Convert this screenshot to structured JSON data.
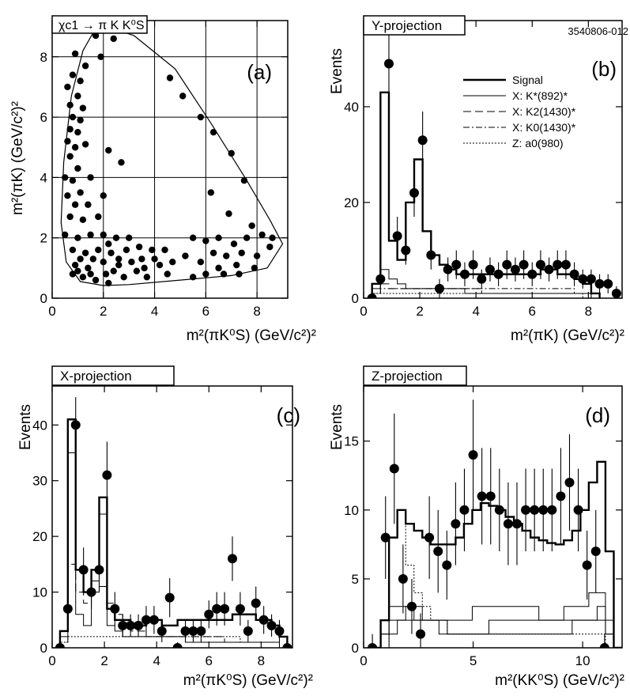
{
  "figure_id": "3540806-012",
  "chart_data": [
    {
      "panel": "a",
      "type": "scatter",
      "title": "χc1 → π K K⁰S",
      "tag": "(a)",
      "xlabel": "m²(πK⁰S)  (GeV/c²)²",
      "ylabel": "m²(πK)  (GeV/c²)²",
      "xlim": [
        0,
        9.2
      ],
      "ylim": [
        0,
        9.2
      ],
      "xticks": [
        0,
        2,
        4,
        6,
        8
      ],
      "yticks": [
        0,
        2,
        4,
        6,
        8
      ],
      "grid": true,
      "boundary": [
        [
          1.8,
          9.1
        ],
        [
          3.2,
          8.7
        ],
        [
          4.8,
          7.6
        ],
        [
          6.2,
          5.8
        ],
        [
          7.6,
          3.9
        ],
        [
          8.5,
          2.6
        ],
        [
          9.0,
          1.8
        ],
        [
          8.4,
          1.0
        ],
        [
          7.0,
          0.75
        ],
        [
          5.0,
          0.6
        ],
        [
          3.0,
          0.45
        ],
        [
          2.0,
          0.42
        ],
        [
          1.1,
          0.55
        ],
        [
          0.55,
          1.2
        ],
        [
          0.35,
          2.5
        ],
        [
          0.45,
          4.5
        ],
        [
          0.75,
          6.7
        ],
        [
          1.2,
          8.2
        ],
        [
          1.8,
          9.1
        ]
      ],
      "points": [
        [
          0.9,
          8.1
        ],
        [
          1.7,
          8.7
        ],
        [
          2.4,
          8.6
        ],
        [
          1.9,
          8.0
        ],
        [
          1.3,
          7.7
        ],
        [
          0.8,
          7.4
        ],
        [
          1.1,
          7.2
        ],
        [
          0.6,
          7.0
        ],
        [
          1.0,
          6.7
        ],
        [
          0.7,
          6.4
        ],
        [
          1.2,
          6.3
        ],
        [
          0.8,
          6.0
        ],
        [
          1.1,
          5.9
        ],
        [
          0.7,
          5.6
        ],
        [
          1.0,
          5.5
        ],
        [
          0.6,
          5.2
        ],
        [
          0.9,
          5.0
        ],
        [
          1.3,
          5.1
        ],
        [
          0.7,
          4.7
        ],
        [
          2.2,
          4.9
        ],
        [
          2.7,
          4.5
        ],
        [
          1.0,
          4.3
        ],
        [
          0.5,
          4.0
        ],
        [
          0.8,
          3.9
        ],
        [
          1.5,
          4.0
        ],
        [
          1.1,
          3.5
        ],
        [
          0.6,
          3.4
        ],
        [
          0.9,
          3.1
        ],
        [
          1.4,
          3.1
        ],
        [
          2.0,
          3.4
        ],
        [
          0.7,
          2.7
        ],
        [
          1.2,
          2.6
        ],
        [
          1.8,
          2.7
        ],
        [
          0.5,
          2.1
        ],
        [
          1.0,
          2.0
        ],
        [
          1.5,
          2.1
        ],
        [
          2.0,
          2.1
        ],
        [
          2.5,
          2.0
        ],
        [
          3.0,
          2.0
        ],
        [
          0.8,
          1.6
        ],
        [
          1.3,
          1.5
        ],
        [
          1.8,
          1.6
        ],
        [
          2.3,
          1.5
        ],
        [
          2.9,
          1.6
        ],
        [
          3.4,
          1.7
        ],
        [
          3.9,
          1.6
        ],
        [
          4.4,
          1.6
        ],
        [
          0.9,
          1.1
        ],
        [
          1.4,
          1.0
        ],
        [
          2.0,
          1.2
        ],
        [
          2.6,
          1.1
        ],
        [
          3.1,
          1.2
        ],
        [
          3.6,
          1.0
        ],
        [
          4.2,
          1.1
        ],
        [
          4.7,
          1.2
        ],
        [
          0.8,
          0.8
        ],
        [
          1.2,
          0.7
        ],
        [
          1.7,
          0.6
        ],
        [
          2.2,
          0.5
        ],
        [
          2.8,
          0.7
        ],
        [
          3.3,
          0.9
        ],
        [
          1.0,
          0.9
        ],
        [
          1.5,
          0.8
        ],
        [
          2.4,
          0.9
        ],
        [
          3.7,
          0.7
        ],
        [
          4.5,
          0.8
        ],
        [
          4.6,
          7.3
        ],
        [
          5.1,
          6.7
        ],
        [
          5.8,
          6.0
        ],
        [
          6.3,
          5.5
        ],
        [
          7.0,
          4.8
        ],
        [
          7.5,
          3.9
        ],
        [
          6.2,
          3.5
        ],
        [
          6.9,
          2.8
        ],
        [
          7.8,
          2.4
        ],
        [
          8.2,
          2.1
        ],
        [
          8.6,
          2.0
        ],
        [
          6.0,
          1.9
        ],
        [
          6.5,
          2.0
        ],
        [
          7.1,
          1.8
        ],
        [
          7.6,
          2.0
        ],
        [
          6.3,
          1.5
        ],
        [
          6.8,
          1.4
        ],
        [
          7.4,
          1.5
        ],
        [
          8.0,
          1.4
        ],
        [
          5.5,
          2.0
        ],
        [
          5.2,
          1.4
        ],
        [
          5.8,
          1.2
        ],
        [
          6.5,
          1.0
        ],
        [
          7.2,
          1.1
        ],
        [
          7.9,
          1.0
        ],
        [
          6.0,
          0.8
        ],
        [
          6.7,
          0.8
        ],
        [
          7.3,
          0.8
        ],
        [
          5.5,
          0.7
        ],
        [
          8.5,
          1.7
        ],
        [
          2.2,
          1.8
        ],
        [
          2.6,
          1.3
        ],
        [
          3.5,
          1.3
        ],
        [
          4.0,
          1.3
        ],
        [
          1.6,
          1.3
        ],
        [
          1.1,
          1.3
        ],
        [
          2.1,
          0.8
        ]
      ]
    },
    {
      "panel": "b",
      "type": "bar",
      "title": "Y-projection",
      "tag": "(b)",
      "xlabel": "m²(πK)  (GeV/c²)²",
      "ylabel": "Events",
      "xlim": [
        0,
        9.2
      ],
      "ylim": [
        0,
        58
      ],
      "xticks": [
        0,
        2,
        4,
        6,
        8
      ],
      "yticks": [
        0,
        20,
        40
      ],
      "legend": [
        {
          "label": "Signal",
          "style": "thick"
        },
        {
          "label": "X: K*(892)*",
          "style": "thin"
        },
        {
          "label": "X: K2(1430)*",
          "style": "dashed"
        },
        {
          "label": "X: K0(1430)*",
          "style": "dashdot"
        },
        {
          "label": "Z: a0(980)",
          "style": "dotted"
        }
      ],
      "bin_width": 0.3,
      "bin_start": 0.3,
      "signal": [
        3,
        43,
        12,
        8,
        20,
        29,
        14,
        9,
        7,
        6,
        5,
        5,
        5,
        5,
        5,
        5,
        5,
        5,
        5,
        5,
        6,
        6,
        5,
        5,
        4,
        3,
        1
      ],
      "components": [
        [
          2,
          6,
          4,
          3,
          2,
          2,
          2,
          2,
          2,
          2,
          2,
          1,
          1,
          1,
          1,
          1,
          1,
          1,
          1,
          1,
          1,
          1,
          1,
          1,
          1,
          1,
          0
        ],
        [
          1,
          3,
          2,
          2,
          2,
          2,
          2,
          2,
          2,
          2,
          2,
          2,
          2,
          1,
          1,
          1,
          1,
          1,
          1,
          1,
          1,
          1,
          1,
          1,
          1,
          1,
          0
        ],
        [
          1,
          2,
          2,
          2,
          2,
          2,
          2,
          2,
          2,
          2,
          2,
          2,
          2,
          2,
          2,
          2,
          2,
          2,
          2,
          2,
          2,
          2,
          2,
          2,
          1,
          1,
          0
        ],
        [
          1,
          1,
          1,
          1,
          1,
          1,
          1,
          1,
          1,
          1,
          1,
          1,
          1,
          1,
          1,
          1,
          1,
          1,
          1,
          1,
          1,
          1,
          1,
          1,
          1,
          0,
          0
        ]
      ],
      "points": [
        [
          0.3,
          0,
          1
        ],
        [
          0.6,
          4,
          2
        ],
        [
          0.9,
          49,
          9
        ],
        [
          1.2,
          13,
          4
        ],
        [
          1.5,
          10,
          3
        ],
        [
          1.8,
          22,
          5
        ],
        [
          2.1,
          33,
          6
        ],
        [
          2.4,
          9,
          3
        ],
        [
          2.7,
          2,
          2
        ],
        [
          3.0,
          6,
          2.5
        ],
        [
          3.3,
          7,
          3
        ],
        [
          3.6,
          5,
          2.5
        ],
        [
          3.9,
          7,
          3
        ],
        [
          4.2,
          4,
          2
        ],
        [
          4.5,
          6,
          2.5
        ],
        [
          4.8,
          5,
          2.5
        ],
        [
          5.1,
          7,
          3
        ],
        [
          5.4,
          6,
          2.5
        ],
        [
          5.7,
          7,
          3
        ],
        [
          6.0,
          5,
          2.5
        ],
        [
          6.3,
          7,
          3
        ],
        [
          6.6,
          6,
          2.5
        ],
        [
          6.9,
          7,
          3
        ],
        [
          7.2,
          7,
          3
        ],
        [
          7.5,
          5,
          2.5
        ],
        [
          7.8,
          4,
          2
        ],
        [
          8.1,
          4,
          2
        ],
        [
          8.4,
          3,
          2
        ],
        [
          8.7,
          3,
          2
        ],
        [
          9.0,
          1,
          1.5
        ]
      ]
    },
    {
      "panel": "c",
      "type": "bar",
      "title": "X-projection",
      "tag": "(c)",
      "xlabel": "m²(πK⁰S)  (GeV/c²)²",
      "ylabel": "Events",
      "xlim": [
        0,
        9.2
      ],
      "ylim": [
        0,
        47
      ],
      "xticks": [
        0,
        2,
        4,
        6,
        8
      ],
      "yticks": [
        0,
        10,
        20,
        30,
        40
      ],
      "bin_width": 0.3,
      "bin_start": 0.3,
      "signal": [
        3,
        41,
        14,
        10,
        14,
        27,
        7,
        5,
        5,
        4,
        4,
        5,
        5,
        4,
        4,
        5,
        5,
        5,
        5,
        5,
        5,
        5,
        6,
        6,
        6,
        5,
        5,
        4,
        2
      ],
      "components": [
        [
          2,
          35,
          6,
          4,
          12,
          24,
          4,
          3,
          2,
          2,
          2,
          2,
          2,
          2,
          2,
          2,
          1,
          1,
          1,
          1,
          1,
          1,
          1,
          1,
          1,
          1,
          1,
          1,
          0
        ],
        [
          1,
          15,
          10,
          8,
          10,
          11,
          8,
          6,
          4,
          3,
          3,
          2,
          2,
          2,
          2,
          2,
          2,
          2,
          2,
          2,
          2,
          1,
          1,
          1,
          1,
          1,
          1,
          1,
          0
        ],
        [
          1,
          2,
          2,
          2,
          2,
          2,
          2,
          2,
          2,
          2,
          2,
          2,
          2,
          2,
          2,
          2,
          2,
          2,
          2,
          2,
          2,
          2,
          2,
          1,
          1,
          1,
          1,
          1,
          0
        ]
      ],
      "points": [
        [
          0.3,
          0,
          1
        ],
        [
          0.6,
          7,
          3
        ],
        [
          0.9,
          40,
          5
        ],
        [
          1.2,
          14,
          4
        ],
        [
          1.5,
          10,
          3
        ],
        [
          1.8,
          14,
          4
        ],
        [
          2.1,
          31,
          6
        ],
        [
          2.4,
          7,
          3
        ],
        [
          2.7,
          4,
          2
        ],
        [
          3.0,
          4,
          2
        ],
        [
          3.3,
          4,
          2
        ],
        [
          3.6,
          5,
          2.5
        ],
        [
          3.9,
          5,
          2.5
        ],
        [
          4.2,
          3,
          2
        ],
        [
          4.5,
          9,
          3.5
        ],
        [
          4.8,
          0,
          1
        ],
        [
          5.1,
          3,
          2
        ],
        [
          5.4,
          3,
          2
        ],
        [
          5.7,
          3,
          2
        ],
        [
          6.0,
          6,
          2.5
        ],
        [
          6.3,
          7,
          3
        ],
        [
          6.6,
          7,
          3
        ],
        [
          6.9,
          16,
          4
        ],
        [
          7.2,
          7,
          3
        ],
        [
          7.5,
          3,
          2
        ],
        [
          7.8,
          8,
          3
        ],
        [
          8.1,
          5,
          2.5
        ],
        [
          8.4,
          4,
          2
        ],
        [
          8.7,
          3,
          2
        ],
        [
          9.0,
          0,
          1
        ]
      ]
    },
    {
      "panel": "d",
      "type": "bar",
      "title": "Z-projection",
      "tag": "(d)",
      "xlabel": "m²(KK⁰S)  (GeV/c²)²",
      "ylabel": "Events",
      "xlim": [
        0,
        11.8
      ],
      "ylim": [
        0,
        19
      ],
      "xticks": [
        0,
        5,
        10
      ],
      "yticks": [
        0,
        5,
        10,
        15
      ],
      "bin_width": 0.38,
      "bin_start": 0.4,
      "signal": [
        0,
        2,
        8,
        10,
        9,
        8.5,
        8,
        7.5,
        7.5,
        7.5,
        8,
        9,
        10,
        10.5,
        10.3,
        10,
        9.5,
        9,
        8.5,
        8,
        7.8,
        7.6,
        7.5,
        7.8,
        8.5,
        10,
        12,
        13.5,
        7,
        0
      ],
      "components": [
        [
          0,
          1,
          3,
          3,
          3,
          2,
          2,
          2,
          1,
          1,
          1,
          1,
          1,
          1,
          1,
          1,
          1,
          1,
          1,
          1,
          1,
          1,
          1,
          1,
          2,
          2,
          2,
          3,
          1,
          0
        ],
        [
          0,
          0,
          1,
          2,
          3,
          3,
          2,
          2,
          2,
          2,
          2,
          2,
          3,
          3,
          3,
          3,
          3,
          3,
          3,
          3,
          2,
          2,
          2,
          2,
          2,
          2,
          2,
          2,
          1,
          0
        ],
        [
          0,
          1,
          2,
          2,
          2,
          2,
          2,
          2,
          2,
          1,
          1,
          1,
          1,
          1,
          2,
          2,
          2,
          2,
          2,
          2,
          2,
          2,
          2,
          3,
          3,
          3,
          4,
          4,
          2,
          0
        ],
        [
          0,
          0,
          8,
          10,
          6,
          4,
          3,
          2,
          2,
          1,
          1,
          1,
          1,
          1,
          1,
          1,
          1,
          1,
          1,
          1,
          1,
          1,
          1,
          1,
          1,
          1,
          1,
          1,
          0,
          0
        ]
      ],
      "points": [
        [
          0.4,
          0,
          1
        ],
        [
          1.0,
          8,
          3
        ],
        [
          1.4,
          13,
          4
        ],
        [
          1.8,
          5,
          2.5
        ],
        [
          2.2,
          3,
          2
        ],
        [
          2.6,
          1,
          1.5
        ],
        [
          3.0,
          8,
          3
        ],
        [
          3.4,
          7,
          3
        ],
        [
          3.8,
          6,
          2.5
        ],
        [
          4.2,
          9,
          3
        ],
        [
          4.6,
          10,
          3
        ],
        [
          5.0,
          14,
          4
        ],
        [
          5.4,
          11,
          3.5
        ],
        [
          5.8,
          11,
          3.5
        ],
        [
          6.2,
          10,
          3
        ],
        [
          6.6,
          9,
          3
        ],
        [
          7.0,
          9,
          3
        ],
        [
          7.4,
          10,
          3
        ],
        [
          7.8,
          10,
          3
        ],
        [
          8.2,
          10,
          3
        ],
        [
          8.6,
          10,
          3
        ],
        [
          9.0,
          11,
          3.5
        ],
        [
          9.4,
          12,
          3.5
        ],
        [
          9.8,
          10,
          3
        ],
        [
          10.2,
          6,
          2.5
        ],
        [
          10.6,
          7,
          3
        ],
        [
          11.0,
          0,
          1
        ]
      ]
    }
  ]
}
